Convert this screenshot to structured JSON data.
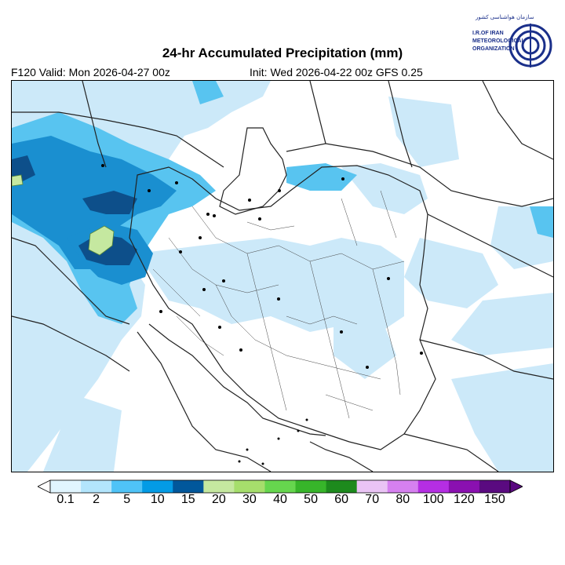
{
  "title": "24-hr Accumulated Precipitation (mm)",
  "valid_text": "F120 Valid: Mon 2026-04-27 00z",
  "init_text": "Init: Wed 2026-04-22 00z GFS 0.25",
  "logo": {
    "persian_text": "سازمان هواشناسی کشور",
    "english_text": [
      "I.R.OF IRAN",
      "METEOROLOGICAL",
      "ORGANIZATION"
    ],
    "color": "#1a2f8a"
  },
  "colorbar": {
    "levels": [
      "0.1",
      "2",
      "5",
      "10",
      "15",
      "20",
      "30",
      "40",
      "50",
      "60",
      "70",
      "80",
      "100",
      "120",
      "150"
    ],
    "colors": [
      "#e1f5fe",
      "#b3e5fc",
      "#4fc3f7",
      "#039be5",
      "#01579b",
      "#c5e8a0",
      "#a6de6c",
      "#66d64e",
      "#37b52a",
      "#1d8a1d",
      "#eac4f5",
      "#d680f0",
      "#b52ee3",
      "#8a10b0",
      "#5a0a80"
    ]
  },
  "map": {
    "background": "#ffffff",
    "precip_light": "#cce9f9",
    "precip_medium": "#58c4f0",
    "precip_heavy": "#1a8fd0",
    "precip_max": "#0d4f8a",
    "precip_green": "#c5e8a0",
    "land_outline": "#222222"
  }
}
